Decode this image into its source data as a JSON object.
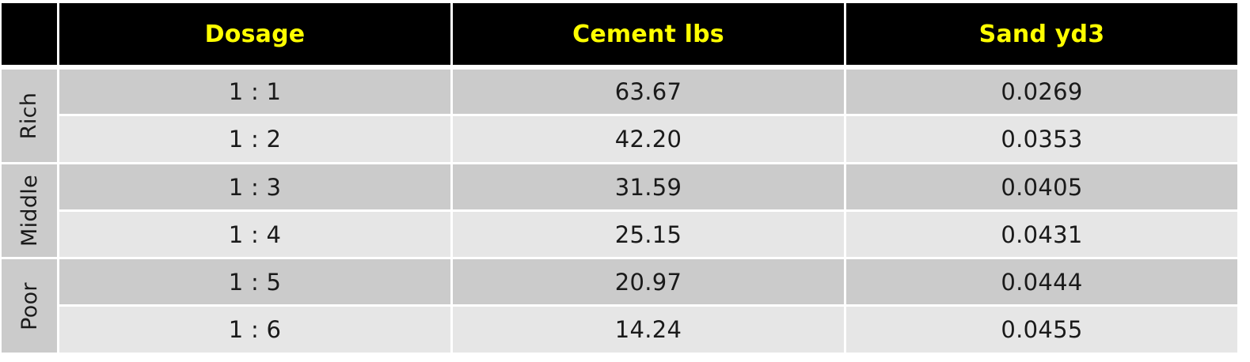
{
  "table": {
    "headers": [
      "",
      "Dosage",
      "Cement lbs",
      "Sand yd3"
    ],
    "groups": [
      {
        "label": "Rich",
        "rows": [
          0,
          1
        ]
      },
      {
        "label": "Middle",
        "rows": [
          2,
          3
        ]
      },
      {
        "label": "Poor",
        "rows": [
          4,
          5
        ]
      }
    ],
    "rows": [
      {
        "dosage": "1 : 1",
        "cement": "63.67",
        "sand": "0.0269"
      },
      {
        "dosage": "1 : 2",
        "cement": "42.20",
        "sand": "0.0353"
      },
      {
        "dosage": "1 : 3",
        "cement": "31.59",
        "sand": "0.0405"
      },
      {
        "dosage": "1 : 4",
        "cement": "25.15",
        "sand": "0.0431"
      },
      {
        "dosage": "1 : 5",
        "cement": "20.97",
        "sand": "0.0444"
      },
      {
        "dosage": "1 : 6",
        "cement": "14.24",
        "sand": "0.0455"
      }
    ]
  },
  "colors": {
    "header_bg": "#000000",
    "header_text": "#ffff00",
    "row_dark": "#cbcbcb",
    "row_light": "#e6e6e6"
  }
}
